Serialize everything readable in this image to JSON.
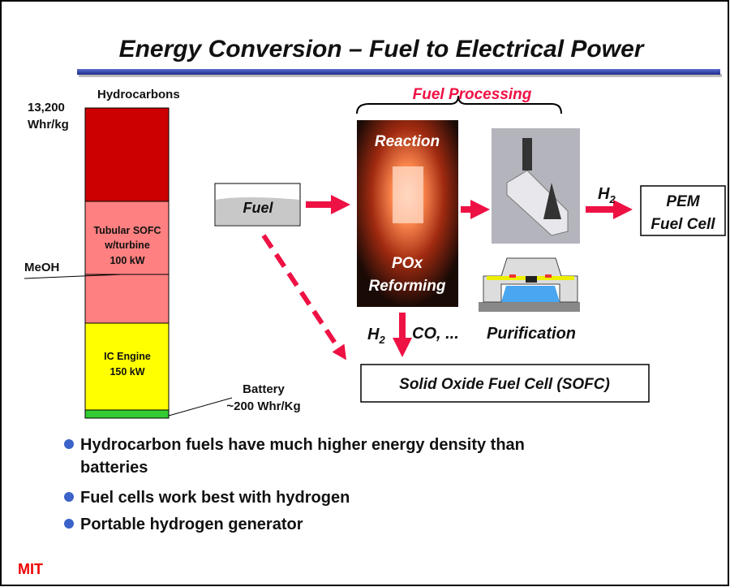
{
  "header": {
    "title": "Energy Conversion – Fuel to Electrical Power"
  },
  "energy_bar": {
    "top_label": "Hydrocarbons",
    "top_value": [
      "13,200",
      "Whr/kg"
    ],
    "sofc_label": [
      "Tubular SOFC",
      "w/turbine",
      "100 kW"
    ],
    "meoh_label": "MeOH",
    "ic_label": [
      "IC Engine",
      "150 kW"
    ],
    "battery_label": [
      "Battery",
      "~200 Whr/Kg"
    ]
  },
  "flow": {
    "fuel": "Fuel",
    "processing": "Fuel  Processing",
    "reactor": [
      "Reaction",
      "POx",
      "Reforming"
    ],
    "h2_top": {
      "base": "H",
      "sub": "2"
    },
    "pem": [
      "PEM",
      "Fuel Cell"
    ],
    "h2_bottom": {
      "base": "H",
      "sub": "2"
    },
    "co": "CO, ...",
    "purification": "Purification",
    "sofc": "Solid Oxide Fuel Cell (SOFC)"
  },
  "bullets": [
    [
      "Hydrocarbon fuels have much higher energy density than",
      "batteries"
    ],
    [
      "Fuel cells work best with hydrogen"
    ],
    [
      "Portable hydrogen generator"
    ]
  ],
  "footer": {
    "logo": "MIT"
  }
}
